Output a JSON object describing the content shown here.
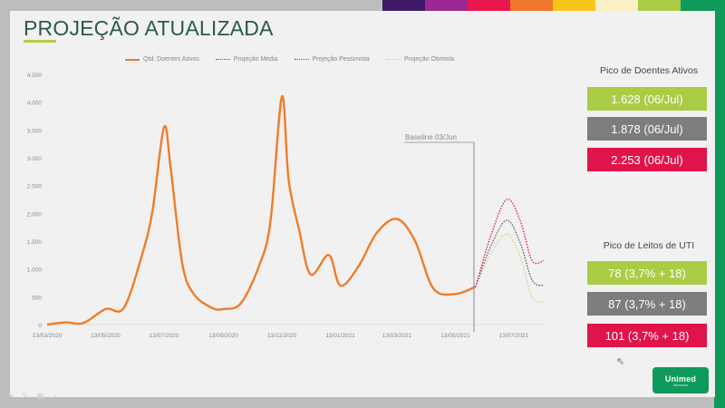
{
  "topbar_colors": [
    "#bdbdbd",
    "#3d1a66",
    "#9c2790",
    "#e8174e",
    "#f0782a",
    "#f7c41a",
    "#fbefc6",
    "#a9cc44",
    "#0e9a5a"
  ],
  "title": "PROJEÇÃO ATUALIZADA",
  "legend": [
    {
      "label": "Qtd. Doentes Ativos",
      "color": "#ee7d2b",
      "style": "solid"
    },
    {
      "label": "Projeção Média",
      "color": "#5a5a6a",
      "style": "dotted"
    },
    {
      "label": "Projeção Pessimista",
      "color": "#d41c4f",
      "style": "dotted"
    },
    {
      "label": "Projeção Otimista",
      "color": "#c8d98a",
      "style": "dotted"
    }
  ],
  "baseline_label": "Baseline 03/Jun",
  "panel_doentes": {
    "title": "Pico de Doentes Ativos",
    "boxes": [
      {
        "text": "1.628 (06/Jul)",
        "color": "#a9cc44"
      },
      {
        "text": "1.878 (06/Jul)",
        "color": "#7d7d7d"
      },
      {
        "text": "2.253 (06/Jul)",
        "color": "#e0144a"
      }
    ]
  },
  "panel_uti": {
    "title": "Pico de Leitos de UTI",
    "boxes": [
      {
        "text": "78 (3,7% + 18)",
        "color": "#a9cc44"
      },
      {
        "text": "87 (3,7% + 18)",
        "color": "#7d7d7d"
      },
      {
        "text": "101 (3,7% + 18)",
        "color": "#e0144a"
      }
    ]
  },
  "logo": {
    "name": "Unimed",
    "sub": "Blumenau"
  },
  "chart_data": {
    "type": "line",
    "title": "",
    "xlabel": "",
    "ylabel": "",
    "ylim": [
      0,
      4500
    ],
    "yticks": [
      "0",
      "500",
      "1.000",
      "1.500",
      "2.000",
      "2.500",
      "3.000",
      "3.500",
      "4.000",
      "4.500"
    ],
    "xticks": [
      "13/03/2020",
      "13/05/2020",
      "13/07/2020",
      "13/09/2020",
      "13/11/2020",
      "13/01/2021",
      "13/03/2021",
      "13/05/2021",
      "13/07/2021"
    ],
    "grid": false,
    "legend_position": "top",
    "annotation": "Baseline 03/Jun",
    "series": [
      {
        "name": "Qtd. Doentes Ativos",
        "x": [
          "13/03/2020",
          "01/04/2020",
          "20/04/2020",
          "13/05/2020",
          "01/06/2020",
          "20/06/2020",
          "01/07/2020",
          "13/07/2020",
          "20/07/2020",
          "01/08/2020",
          "13/08/2020",
          "01/09/2020",
          "13/09/2020",
          "01/10/2020",
          "20/10/2020",
          "01/11/2020",
          "13/11/2020",
          "20/11/2020",
          "01/12/2020",
          "13/12/2020",
          "01/01/2021",
          "13/01/2021",
          "01/02/2021",
          "20/02/2021",
          "13/03/2021",
          "01/04/2021",
          "20/04/2021",
          "13/05/2021",
          "03/06/2021"
        ],
        "values": [
          0,
          40,
          30,
          280,
          300,
          1250,
          2050,
          3550,
          2800,
          1100,
          550,
          300,
          280,
          380,
          1050,
          1850,
          4100,
          2600,
          1700,
          900,
          1250,
          700,
          1050,
          1650,
          1900,
          1500,
          650,
          550,
          680
        ]
      },
      {
        "name": "Projeção Média",
        "x": [
          "03/06/2021",
          "20/06/2021",
          "06/07/2021",
          "20/07/2021",
          "01/08/2021",
          "13/08/2021"
        ],
        "values": [
          680,
          1450,
          1878,
          1450,
          800,
          700
        ]
      },
      {
        "name": "Projeção Pessimista",
        "x": [
          "03/06/2021",
          "20/06/2021",
          "06/07/2021",
          "20/07/2021",
          "01/08/2021",
          "13/08/2021"
        ],
        "values": [
          680,
          1650,
          2253,
          1850,
          1150,
          1150
        ]
      },
      {
        "name": "Projeção Otimista",
        "x": [
          "03/06/2021",
          "20/06/2021",
          "06/07/2021",
          "20/07/2021",
          "01/08/2021",
          "13/08/2021"
        ],
        "values": [
          680,
          1300,
          1628,
          1200,
          500,
          400
        ]
      }
    ]
  },
  "controls": [
    "◂",
    "✎",
    "▦",
    "⌕"
  ]
}
